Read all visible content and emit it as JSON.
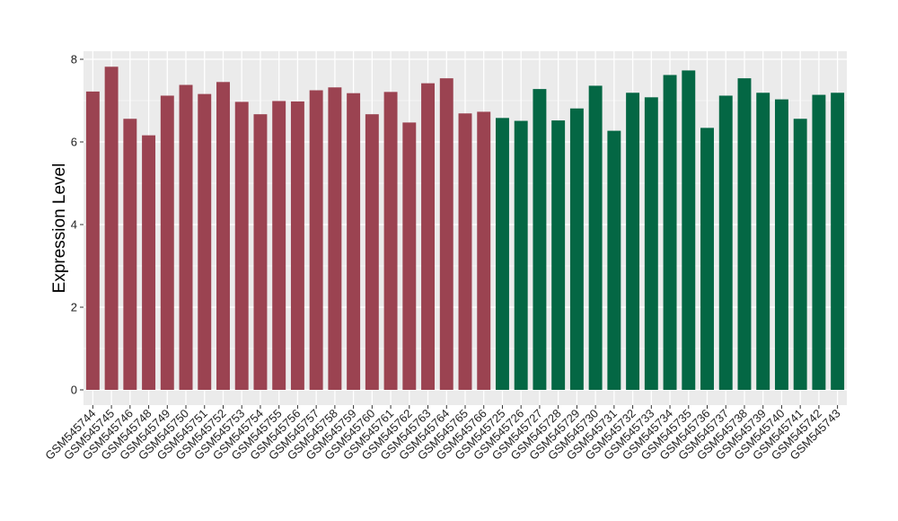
{
  "chart_data": {
    "type": "bar",
    "title": "",
    "xlabel": "",
    "ylabel": "Expression Level",
    "ylim": [
      0,
      8.3
    ],
    "yticks": [
      0,
      2,
      4,
      6,
      8
    ],
    "grid": true,
    "legend": "none",
    "panel_background": "#EBEBEB",
    "gridline_color": "#FFFFFF",
    "categories": [
      "GSM545744",
      "GSM545745",
      "GSM545746",
      "GSM545748",
      "GSM545749",
      "GSM545750",
      "GSM545751",
      "GSM545752",
      "GSM545753",
      "GSM545754",
      "GSM545755",
      "GSM545756",
      "GSM545757",
      "GSM545758",
      "GSM545759",
      "GSM545760",
      "GSM545761",
      "GSM545762",
      "GSM545763",
      "GSM545764",
      "GSM545765",
      "GSM545766",
      "GSM545725",
      "GSM545726",
      "GSM545727",
      "GSM545728",
      "GSM545729",
      "GSM545730",
      "GSM545731",
      "GSM545732",
      "GSM545733",
      "GSM545734",
      "GSM545735",
      "GSM545736",
      "GSM545737",
      "GSM545738",
      "GSM545739",
      "GSM545740",
      "GSM545741",
      "GSM545742",
      "GSM545743"
    ],
    "values": [
      7.22,
      7.82,
      6.56,
      6.16,
      7.12,
      7.38,
      7.16,
      7.45,
      6.97,
      6.67,
      6.99,
      6.98,
      7.25,
      7.32,
      7.18,
      6.67,
      7.21,
      6.47,
      7.42,
      7.54,
      6.69,
      6.73,
      6.58,
      6.51,
      7.28,
      6.52,
      6.81,
      7.36,
      6.27,
      7.19,
      7.08,
      7.62,
      7.73,
      6.34,
      7.12,
      7.54,
      7.19,
      7.03,
      6.56,
      7.14,
      7.19
    ],
    "group_colors": {
      "group1": "#9B4351",
      "group2": "#046744"
    },
    "bar_groups": [
      "group1",
      "group1",
      "group1",
      "group1",
      "group1",
      "group1",
      "group1",
      "group1",
      "group1",
      "group1",
      "group1",
      "group1",
      "group1",
      "group1",
      "group1",
      "group1",
      "group1",
      "group1",
      "group1",
      "group1",
      "group1",
      "group1",
      "group2",
      "group2",
      "group2",
      "group2",
      "group2",
      "group2",
      "group2",
      "group2",
      "group2",
      "group2",
      "group2",
      "group2",
      "group2",
      "group2",
      "group2",
      "group2",
      "group2",
      "group2",
      "group2"
    ]
  }
}
